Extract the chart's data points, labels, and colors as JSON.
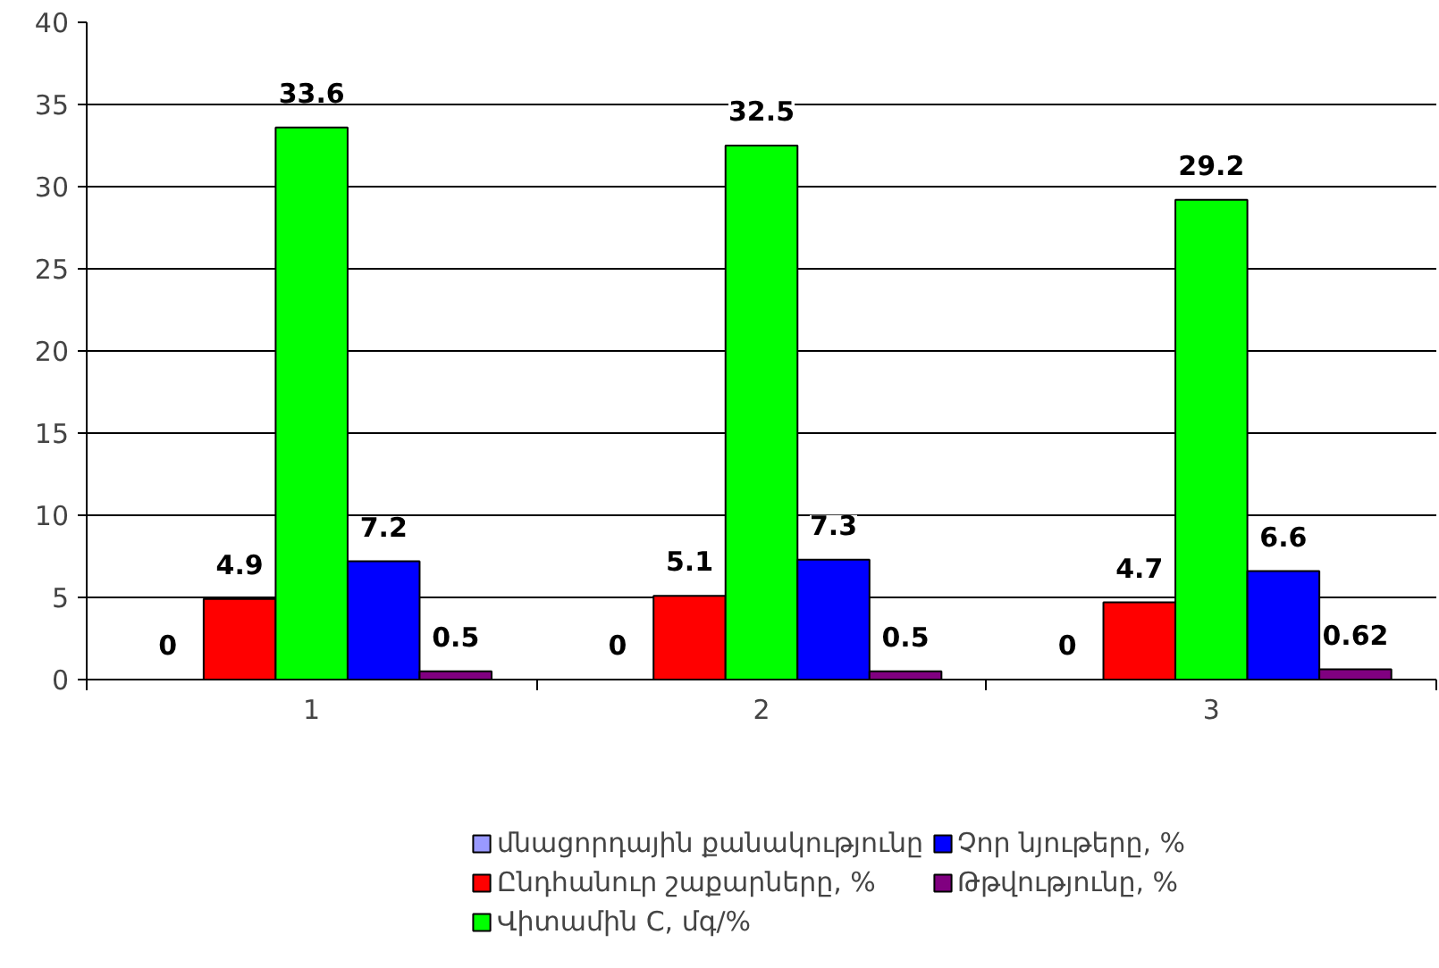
{
  "chart_data": {
    "type": "bar",
    "categories": [
      "1",
      "2",
      "3"
    ],
    "series": [
      {
        "name": "մնացորդային քանակությունը",
        "color": "#9999ff",
        "values": [
          0,
          0,
          0
        ]
      },
      {
        "name": "Ընդհանուր շաքարները, %",
        "color": "#ff0000",
        "values": [
          4.9,
          5.1,
          4.7
        ]
      },
      {
        "name": "Վիտամին C, մգ/%",
        "color": "#00ff00",
        "values": [
          33.6,
          32.5,
          29.2
        ]
      },
      {
        "name": "Չոր նյութերը, %",
        "color": "#0000ff",
        "values": [
          7.2,
          7.3,
          6.6
        ]
      },
      {
        "name": "Թթվությունը, %",
        "color": "#800080",
        "values": [
          0.5,
          0.5,
          0.62
        ]
      }
    ],
    "ylim": [
      0,
      40
    ],
    "yticks": [
      0,
      5,
      10,
      15,
      20,
      25,
      30,
      35,
      40
    ],
    "grid": "y",
    "legend": "bottom",
    "data_labels": true
  }
}
